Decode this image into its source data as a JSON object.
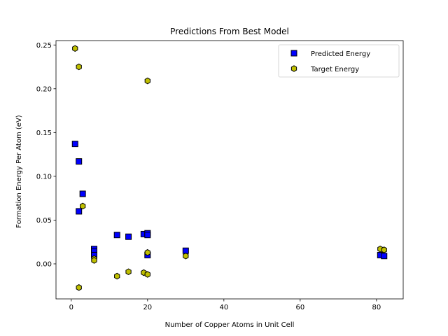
{
  "chart_data": {
    "type": "scatter",
    "title": "Predictions From Best Model",
    "xlabel": "Number of Copper Atoms in Unit Cell",
    "ylabel": "Formation Energy Per Atom (eV)",
    "xlim": [
      -4,
      87
    ],
    "ylim": [
      -0.04,
      0.255
    ],
    "xticks": [
      0,
      20,
      40,
      60,
      80
    ],
    "yticks": [
      0.0,
      0.05,
      0.1,
      0.15,
      0.2,
      0.25
    ],
    "xtick_labels": [
      "0",
      "20",
      "40",
      "60",
      "80"
    ],
    "ytick_labels": [
      "0.00",
      "0.05",
      "0.10",
      "0.15",
      "0.20",
      "0.25"
    ],
    "grid": false,
    "legend": "top-right",
    "series": [
      {
        "name": "Predicted Energy",
        "marker": "square",
        "color": "#0000ff",
        "x": [
          1,
          2,
          2,
          3,
          6,
          6,
          6,
          12,
          15,
          19,
          20,
          20,
          20,
          30,
          81,
          82
        ],
        "y": [
          0.137,
          0.117,
          0.06,
          0.08,
          0.017,
          0.014,
          0.01,
          0.033,
          0.031,
          0.034,
          0.035,
          0.033,
          0.01,
          0.015,
          0.01,
          0.009
        ]
      },
      {
        "name": "Target Energy",
        "marker": "hexagon",
        "color": "#bfbf00",
        "x": [
          1,
          2,
          2,
          3,
          6,
          6,
          12,
          15,
          19,
          20,
          20,
          20,
          30,
          81,
          82
        ],
        "y": [
          0.246,
          0.225,
          -0.027,
          0.066,
          0.006,
          0.004,
          -0.014,
          -0.009,
          -0.01,
          -0.012,
          0.013,
          0.209,
          0.009,
          0.017,
          0.016
        ]
      }
    ]
  }
}
